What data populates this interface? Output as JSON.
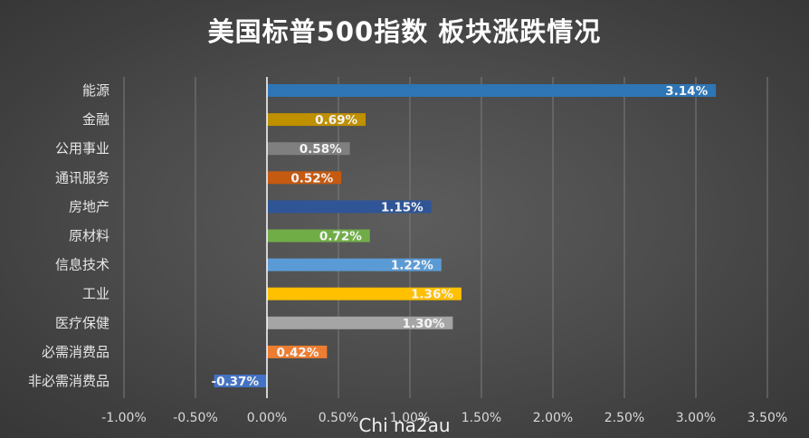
{
  "watermark": "Chi na2au",
  "chart_data": {
    "type": "bar",
    "orientation": "horizontal",
    "title": "美国标普500指数 板块涨跌情况",
    "xlabel": "",
    "ylabel": "",
    "categories": [
      "能源",
      "金融",
      "公用事业",
      "通讯服务",
      "房地产",
      "原材料",
      "信息技术",
      "工业",
      "医疗保健",
      "必需消费品",
      "非必需消费品"
    ],
    "values": [
      3.14,
      0.69,
      0.58,
      0.52,
      1.15,
      0.72,
      1.22,
      1.36,
      1.3,
      0.42,
      -0.37
    ],
    "data_labels": [
      "3.14%",
      "0.69%",
      "0.58%",
      "0.52%",
      "1.15%",
      "0.72%",
      "1.22%",
      "1.36%",
      "1.30%",
      "0.42%",
      "-0.37%"
    ],
    "colors": [
      "#2e75b6",
      "#bf9000",
      "#7f7f7f",
      "#c55a11",
      "#2f5597",
      "#70ad47",
      "#5b9bd5",
      "#ffc000",
      "#a5a5a5",
      "#ed7d31",
      "#4472c4"
    ],
    "xlim": [
      -1.0,
      3.5
    ],
    "x_ticks": [
      -1.0,
      -0.5,
      0.0,
      0.5,
      1.0,
      1.5,
      2.0,
      2.5,
      3.0,
      3.5
    ],
    "x_tick_labels": [
      "-1.00%",
      "-0.50%",
      "0.00%",
      "0.50%",
      "1.00%",
      "1.50%",
      "2.00%",
      "2.50%",
      "3.00%",
      "3.50%"
    ],
    "unit": "%",
    "grid": "vertical",
    "legend": "none"
  }
}
